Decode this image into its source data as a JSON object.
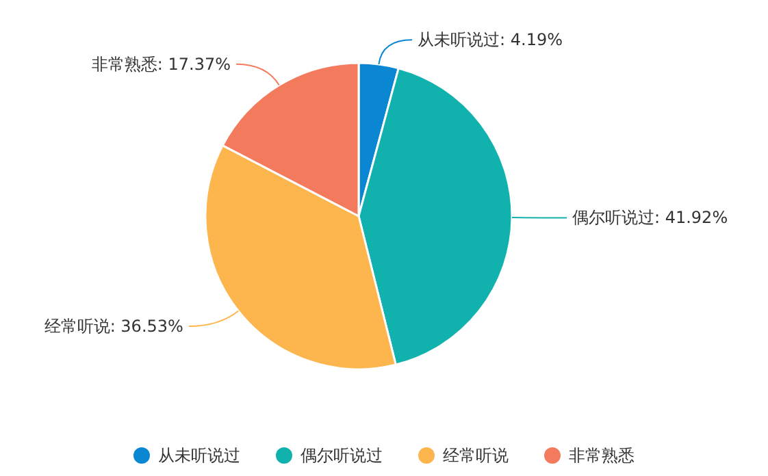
{
  "chart_data": {
    "type": "pie",
    "categories": [
      "从未听说过",
      "偶尔听说过",
      "经常听说",
      "非常熟悉"
    ],
    "values": [
      4.19,
      41.92,
      36.53,
      17.37
    ],
    "value_labels": [
      ": 4.19%",
      ": 41.92%",
      ": 36.53%",
      ": 17.37%"
    ],
    "colors": [
      "#0a86d3",
      "#11b2ae",
      "#fdb54e",
      "#f47a5e"
    ],
    "legend": "bottom"
  }
}
